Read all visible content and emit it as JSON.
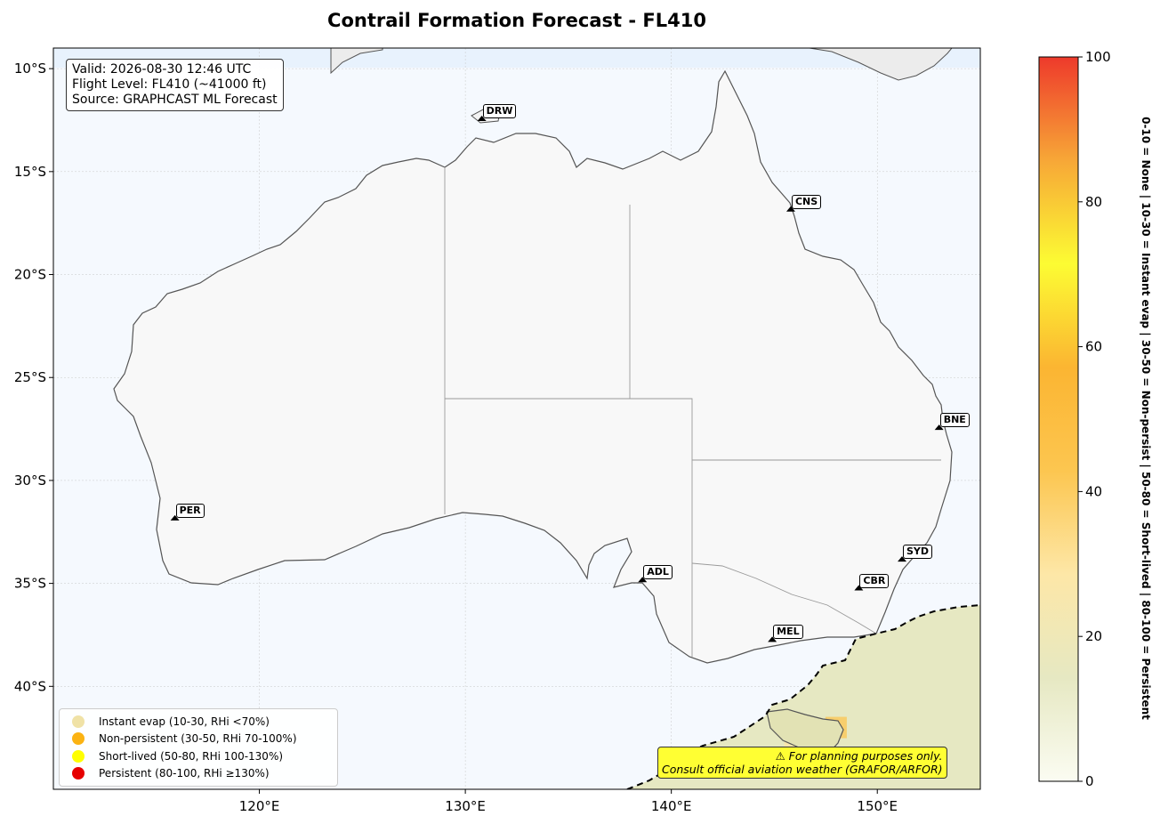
{
  "chart_data": {
    "type": "heatmap",
    "title": "Contrail Formation Forecast - FL410",
    "x_ticks": [
      "120°E",
      "130°E",
      "140°E",
      "150°E"
    ],
    "y_ticks": [
      "10°S",
      "15°S",
      "20°S",
      "25°S",
      "30°S",
      "35°S",
      "40°S"
    ],
    "lon_range": [
      110,
      155
    ],
    "lat_range": [
      -45,
      -9
    ],
    "colorbar": {
      "range": [
        0,
        100
      ],
      "ticks": [
        "0",
        "20",
        "40",
        "60",
        "80",
        "100"
      ],
      "colors": [
        "#fbfcf2",
        "#e6e8c2",
        "#fde7a7",
        "#fcc650",
        "#fbb532",
        "#fcfc33",
        "#f7a737",
        "#ee3a2b"
      ],
      "label": "0-10 = None  |  10-30 = Instant evap  |  30-50 = Non-persist  |  50-80 = Short-lived  |  80-100 = Persistent"
    },
    "forecast_cells": [
      {
        "lon": 150,
        "lat": -40,
        "value": 18
      },
      {
        "lon": 153,
        "lat": -38,
        "value": 16
      },
      {
        "lon": 146,
        "lat": -42.5,
        "value": 35
      },
      {
        "lon": 148,
        "lat": -42,
        "value": 45
      },
      {
        "lon": 144,
        "lat": -44,
        "value": 15
      },
      {
        "lon": 152,
        "lat": -43,
        "value": 18
      }
    ]
  },
  "info": {
    "line1": "Valid: 2026-08-30 12:46 UTC",
    "line2": "Flight Level: FL410 (~41000 ft)",
    "line3": "Source: GRAPHCAST ML Forecast"
  },
  "cities": [
    {
      "code": "DRW",
      "lon": 130.8,
      "lat": -12.5
    },
    {
      "code": "CNS",
      "lon": 145.8,
      "lat": -16.9
    },
    {
      "code": "BNE",
      "lon": 153.0,
      "lat": -27.5
    },
    {
      "code": "PER",
      "lon": 115.9,
      "lat": -31.9
    },
    {
      "code": "SYD",
      "lon": 151.2,
      "lat": -33.9
    },
    {
      "code": "ADL",
      "lon": 138.6,
      "lat": -34.9
    },
    {
      "code": "CBR",
      "lon": 149.1,
      "lat": -35.3
    },
    {
      "code": "MEL",
      "lon": 144.9,
      "lat": -37.8
    }
  ],
  "legend": [
    {
      "label": "Instant evap (10-30, RHi <70%)",
      "color": "#f0e2a6"
    },
    {
      "label": "Non-persistent (30-50, RHi 70-100%)",
      "color": "#fbb313"
    },
    {
      "label": "Short-lived (50-80, RHi 100-130%)",
      "color": "#ffff00"
    },
    {
      "label": "Persistent (80-100, RHi ≥130%)",
      "color": "#e60000"
    }
  ],
  "warning": {
    "line1": "⚠ For planning purposes only.",
    "line2": "Consult official aviation weather (GRAFOR/ARFOR)"
  }
}
